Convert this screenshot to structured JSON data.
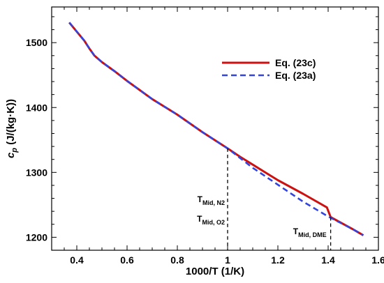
{
  "chart_data": {
    "type": "line",
    "xlabel": "1000/T (1/K)",
    "ylabel_main": "c",
    "ylabel_sub": "p",
    "ylabel_unit": " (J/(kg·K))",
    "xlim": [
      0.3,
      1.6
    ],
    "ylim": [
      1180,
      1555
    ],
    "xticks": [
      0.4,
      0.6,
      0.8,
      1.0,
      1.2,
      1.4,
      1.6
    ],
    "xtick_labels": [
      "0.4",
      "0.6",
      "0.8",
      "1",
      "1.2",
      "1.4",
      "1.6"
    ],
    "yticks": [
      1200,
      1300,
      1400,
      1500
    ],
    "ytick_labels": [
      "1200",
      "1300",
      "1400",
      "1500"
    ],
    "grid": false,
    "legend_position": "top-right",
    "series": [
      {
        "name": "Eq. (23c)",
        "color": "#cc1111",
        "style": "solid",
        "points": [
          [
            0.37,
            1531
          ],
          [
            0.4,
            1517
          ],
          [
            0.43,
            1503
          ],
          [
            0.45,
            1491
          ],
          [
            0.47,
            1480
          ],
          [
            0.5,
            1470
          ],
          [
            0.55,
            1456
          ],
          [
            0.6,
            1441
          ],
          [
            0.65,
            1427
          ],
          [
            0.7,
            1413
          ],
          [
            0.8,
            1389
          ],
          [
            0.9,
            1362
          ],
          [
            1.0,
            1337
          ],
          [
            1.05,
            1324
          ],
          [
            1.1,
            1312
          ],
          [
            1.2,
            1288
          ],
          [
            1.3,
            1267
          ],
          [
            1.395,
            1246
          ],
          [
            1.41,
            1231
          ],
          [
            1.5,
            1212
          ],
          [
            1.54,
            1203
          ]
        ]
      },
      {
        "name": "Eq. (23a)",
        "color": "#3344dd",
        "style": "dashed",
        "points": [
          [
            0.37,
            1531
          ],
          [
            0.4,
            1517
          ],
          [
            0.43,
            1503
          ],
          [
            0.45,
            1491
          ],
          [
            0.47,
            1480
          ],
          [
            0.5,
            1470
          ],
          [
            0.55,
            1456
          ],
          [
            0.6,
            1441
          ],
          [
            0.65,
            1427
          ],
          [
            0.7,
            1413
          ],
          [
            0.8,
            1389
          ],
          [
            0.9,
            1362
          ],
          [
            1.0,
            1337
          ],
          [
            1.05,
            1322
          ],
          [
            1.1,
            1307
          ],
          [
            1.2,
            1281
          ],
          [
            1.3,
            1255
          ],
          [
            1.4,
            1232
          ],
          [
            1.45,
            1222
          ],
          [
            1.5,
            1212
          ],
          [
            1.54,
            1203
          ]
        ]
      }
    ],
    "markers": [
      {
        "x": 1.0,
        "y_top": 1337,
        "labels": [
          [
            "T",
            "Mid, N2"
          ],
          [
            "T",
            "Mid, O2"
          ]
        ]
      },
      {
        "x": 1.41,
        "y_top": 1231,
        "labels": [
          [
            "T",
            "Mid, DME"
          ]
        ]
      }
    ]
  }
}
